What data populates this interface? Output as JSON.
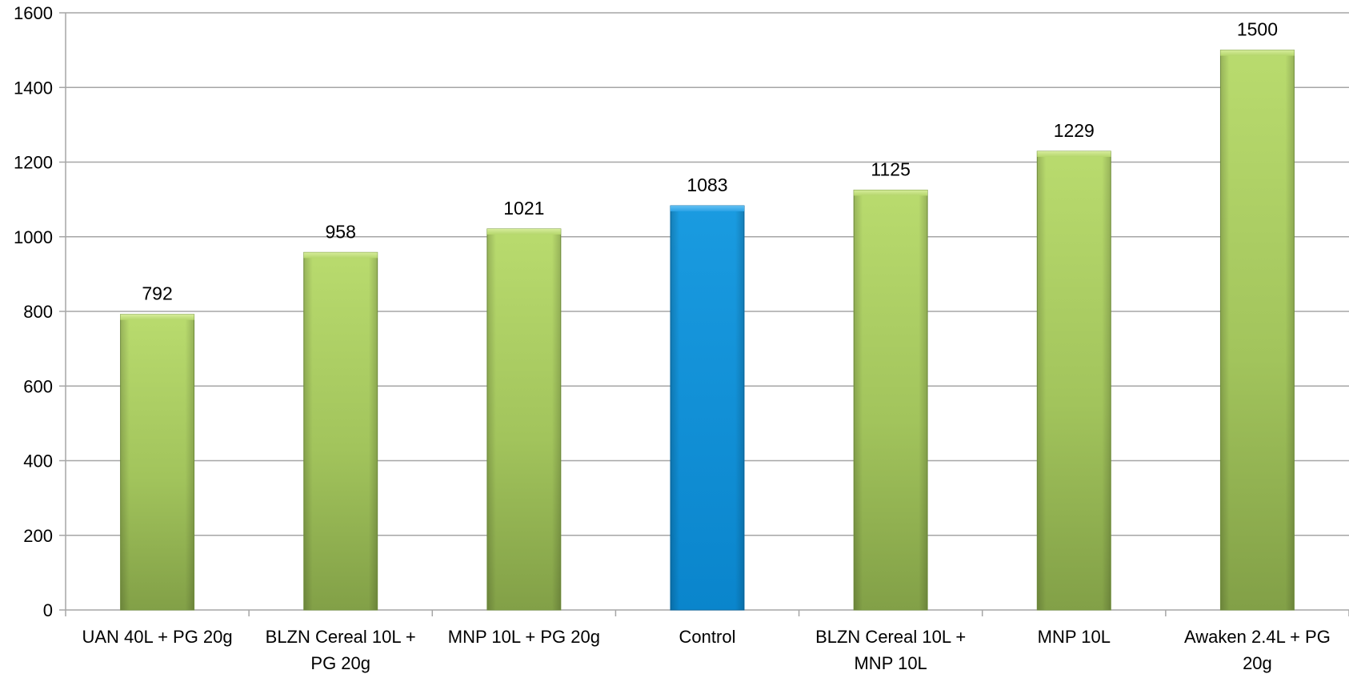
{
  "chart_data": {
    "type": "bar",
    "title": "",
    "xlabel": "",
    "ylabel": "",
    "categories": [
      "UAN 40L + PG 20g",
      "BLZN Cereal 10L + PG 20g",
      "MNP 10L + PG 20g",
      "Control",
      "BLZN Cereal 10L + MNP 10L",
      "MNP 10L",
      "Awaken 2.4L + PG 20g"
    ],
    "category_lines": [
      [
        "UAN 40L + PG 20g"
      ],
      [
        "BLZN Cereal 10L +",
        "PG 20g"
      ],
      [
        "MNP 10L + PG 20g"
      ],
      [
        "Control"
      ],
      [
        "BLZN Cereal 10L +",
        "MNP 10L"
      ],
      [
        "MNP 10L"
      ],
      [
        "Awaken 2.4L + PG",
        "20g"
      ]
    ],
    "values": [
      792,
      958,
      1021,
      1083,
      1125,
      1229,
      1500
    ],
    "data_labels": [
      "792",
      "958",
      "1021",
      "1083",
      "1125",
      "1229",
      "1500"
    ],
    "highlight_index": 3,
    "colors": {
      "default_bar": "#9bbb59",
      "highlight_bar": "#0e8fd6",
      "grid": "#a6a6a6"
    },
    "ylim": [
      0,
      1600
    ],
    "yticks": [
      0,
      200,
      400,
      600,
      800,
      1000,
      1200,
      1400,
      1600
    ],
    "ytick_labels": [
      "0",
      "200",
      "400",
      "600",
      "800",
      "1000",
      "1200",
      "1400",
      "1600"
    ],
    "grid": true,
    "legend": "none"
  }
}
